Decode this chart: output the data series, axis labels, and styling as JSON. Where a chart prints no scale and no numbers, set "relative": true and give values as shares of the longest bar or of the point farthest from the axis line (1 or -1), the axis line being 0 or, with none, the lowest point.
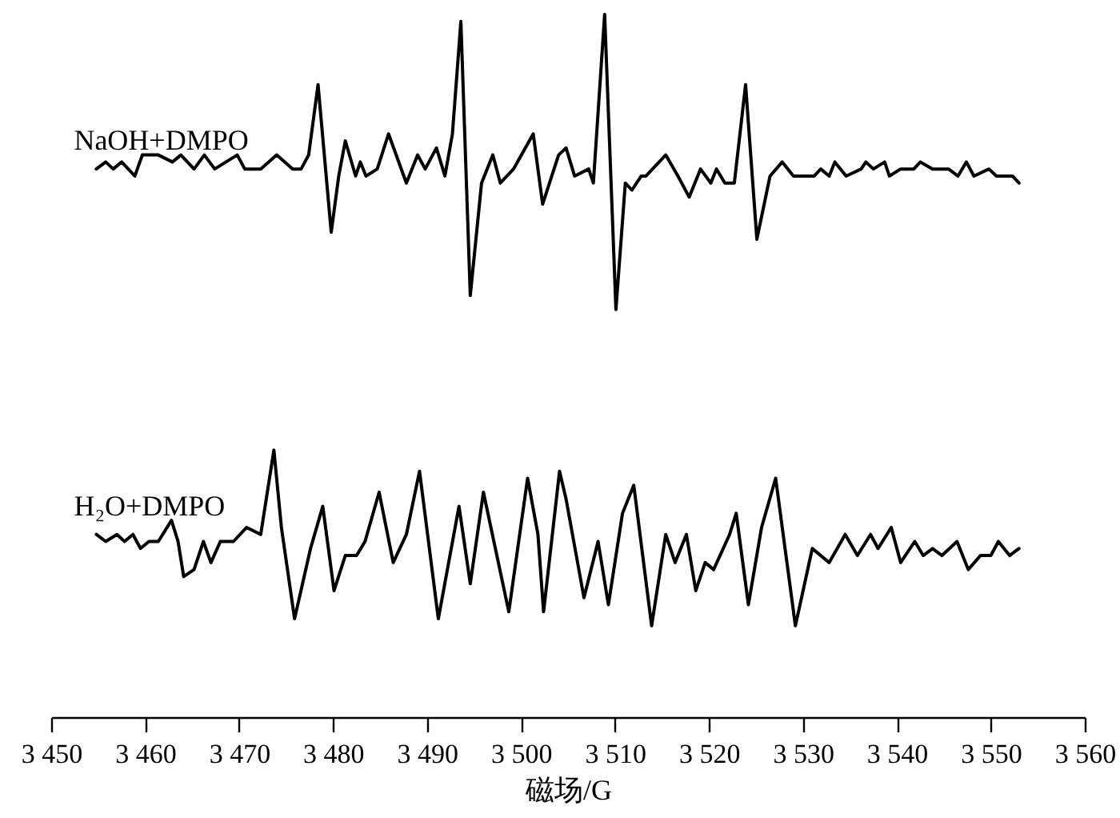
{
  "chart_data": {
    "type": "line",
    "relative": true,
    "xlabel": "磁场/G",
    "xlim": [
      3450,
      3560
    ],
    "xticks": [
      {
        "value": 3450,
        "label": "3 450"
      },
      {
        "value": 3460,
        "label": "3 460"
      },
      {
        "value": 3470,
        "label": "3 470"
      },
      {
        "value": 3480,
        "label": "3 480"
      },
      {
        "value": 3490,
        "label": "3 490"
      },
      {
        "value": 3500,
        "label": "3 500"
      },
      {
        "value": 3510,
        "label": "3 510"
      },
      {
        "value": 3520,
        "label": "3 520"
      },
      {
        "value": 3530,
        "label": "3 530"
      },
      {
        "value": 3540,
        "label": "3 540"
      },
      {
        "value": 3550,
        "label": "3 550"
      },
      {
        "value": 3560,
        "label": "3 560"
      }
    ],
    "legend": false,
    "grid": false,
    "series": [
      {
        "name": "NaOH+DMPO",
        "color": "#000000",
        "x": [
          3454.8,
          3455.8,
          3456.6,
          3457.5,
          3458.9,
          3459.7,
          3461.4,
          3462.9,
          3463.8,
          3465.2,
          3466.3,
          3467.4,
          3469.8,
          3470.6,
          3472.3,
          3474.0,
          3475.7,
          3476.6,
          3477.4,
          3478.4,
          3479.8,
          3480.6,
          3481.3,
          3482.4,
          3482.9,
          3483.5,
          3484.7,
          3485.9,
          3487.8,
          3489.0,
          3489.8,
          3491.0,
          3491.9,
          3492.7,
          3493.6,
          3494.6,
          3495.8,
          3497.0,
          3497.8,
          3499.2,
          3501.3,
          3502.3,
          3504.0,
          3504.8,
          3505.7,
          3507.2,
          3507.7,
          3508.9,
          3510.1,
          3511.1,
          3511.8,
          3512.8,
          3513.3,
          3515.4,
          3516.7,
          3517.9,
          3519.1,
          3520.2,
          3520.8,
          3521.7,
          3522.7,
          3523.9,
          3525.1,
          3526.5,
          3527.8,
          3529.0,
          3530.2,
          3531.2,
          3531.9,
          3532.8,
          3533.4,
          3534.6,
          3536.2,
          3536.7,
          3537.5,
          3538.7,
          3539.2,
          3540.4,
          3541.8,
          3542.5,
          3543.8,
          3545.5,
          3546.5,
          3547.4,
          3548.2,
          3549.8,
          3550.6,
          3551.7,
          3552.3,
          3553.0
        ],
        "values": [
          0.78,
          0.79,
          0.78,
          0.79,
          0.77,
          0.8,
          0.8,
          0.79,
          0.8,
          0.78,
          0.8,
          0.78,
          0.8,
          0.78,
          0.78,
          0.8,
          0.78,
          0.78,
          0.8,
          0.9,
          0.69,
          0.77,
          0.82,
          0.77,
          0.79,
          0.77,
          0.78,
          0.83,
          0.76,
          0.8,
          0.78,
          0.81,
          0.77,
          0.83,
          0.99,
          0.6,
          0.76,
          0.8,
          0.76,
          0.78,
          0.83,
          0.73,
          0.8,
          0.81,
          0.77,
          0.78,
          0.76,
          1.0,
          0.58,
          0.76,
          0.75,
          0.77,
          0.77,
          0.8,
          0.77,
          0.74,
          0.78,
          0.76,
          0.78,
          0.76,
          0.76,
          0.9,
          0.68,
          0.77,
          0.79,
          0.77,
          0.77,
          0.77,
          0.78,
          0.77,
          0.79,
          0.77,
          0.78,
          0.79,
          0.78,
          0.79,
          0.77,
          0.78,
          0.78,
          0.79,
          0.78,
          0.78,
          0.77,
          0.79,
          0.77,
          0.78,
          0.77,
          0.77,
          0.77,
          0.76
        ]
      },
      {
        "name": "H₂O+DMPO",
        "color": "#000000",
        "x": [
          3454.8,
          3455.8,
          3457.0,
          3457.8,
          3458.7,
          3459.5,
          3460.4,
          3461.4,
          3462.8,
          3463.5,
          3464.1,
          3465.2,
          3466.2,
          3467.0,
          3468.0,
          3469.4,
          3470.8,
          3472.3,
          3473.7,
          3474.5,
          3475.9,
          3477.6,
          3478.9,
          3480.1,
          3481.3,
          3482.5,
          3483.4,
          3484.9,
          3486.4,
          3487.8,
          3489.2,
          3491.2,
          3493.4,
          3494.6,
          3496.0,
          3498.7,
          3500.7,
          3501.8,
          3502.4,
          3504.1,
          3504.8,
          3506.7,
          3508.2,
          3509.3,
          3510.8,
          3512.0,
          3513.9,
          3515.4,
          3516.4,
          3517.6,
          3518.6,
          3519.6,
          3520.5,
          3522.2,
          3522.9,
          3524.2,
          3525.6,
          3527.1,
          3529.2,
          3531.0,
          3532.8,
          3534.5,
          3535.8,
          3537.2,
          3538.0,
          3539.4,
          3540.4,
          3541.9,
          3542.8,
          3543.8,
          3544.8,
          3546.4,
          3547.6,
          3548.9,
          3550.0,
          3550.8,
          3552.0,
          3553.0
        ],
        "values": [
          0.26,
          0.25,
          0.26,
          0.25,
          0.26,
          0.24,
          0.25,
          0.25,
          0.28,
          0.25,
          0.2,
          0.21,
          0.25,
          0.22,
          0.25,
          0.25,
          0.27,
          0.26,
          0.38,
          0.27,
          0.14,
          0.24,
          0.3,
          0.18,
          0.23,
          0.23,
          0.25,
          0.32,
          0.22,
          0.26,
          0.35,
          0.14,
          0.3,
          0.19,
          0.32,
          0.15,
          0.34,
          0.26,
          0.15,
          0.35,
          0.31,
          0.17,
          0.25,
          0.16,
          0.29,
          0.33,
          0.13,
          0.26,
          0.22,
          0.26,
          0.18,
          0.22,
          0.21,
          0.26,
          0.29,
          0.16,
          0.27,
          0.34,
          0.13,
          0.24,
          0.22,
          0.26,
          0.23,
          0.26,
          0.24,
          0.27,
          0.22,
          0.25,
          0.23,
          0.24,
          0.23,
          0.25,
          0.21,
          0.23,
          0.23,
          0.25,
          0.23,
          0.24
        ]
      }
    ]
  }
}
